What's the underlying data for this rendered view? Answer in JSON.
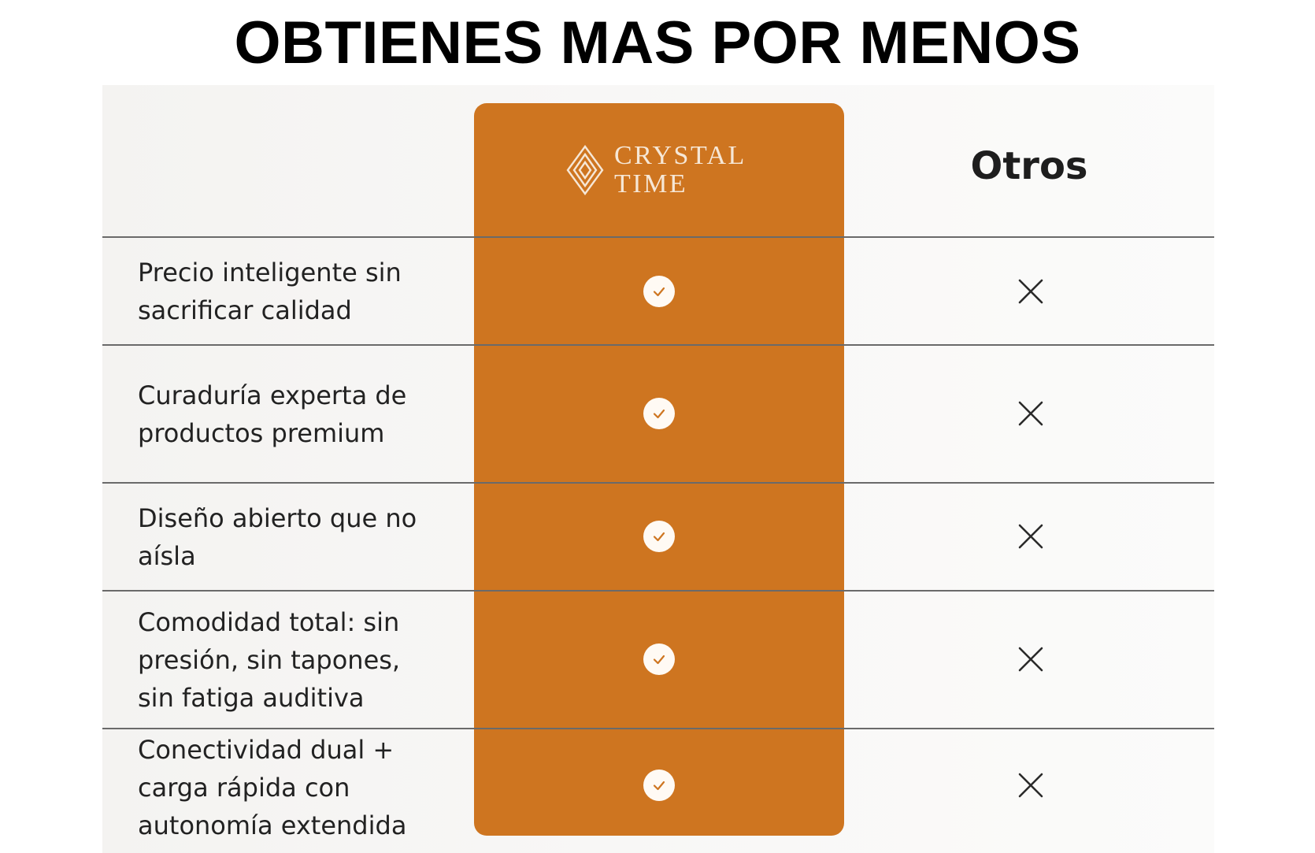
{
  "headline": "OBTIENES MAS POR MENOS",
  "brand": {
    "name_line1": "CRYSTAL",
    "name_line2": "TIME",
    "logo_icon": "diamond-crystal-icon",
    "column_color": "#ce7520"
  },
  "others": {
    "title": "Otros"
  },
  "rows": [
    {
      "feature": [
        "Precio inteligente sin",
        "sacrificar calidad"
      ],
      "brand_value": "check-icon",
      "others_value": "x-icon"
    },
    {
      "feature": [
        "Curaduría experta de",
        "productos premium"
      ],
      "brand_value": "check-icon",
      "others_value": "x-icon"
    },
    {
      "feature": [
        "Diseño abierto que no",
        "aísla"
      ],
      "brand_value": "check-icon",
      "others_value": "x-icon"
    },
    {
      "feature": [
        "Comodidad total: sin",
        "presión, sin tapones,",
        "sin fatiga auditiva"
      ],
      "brand_value": "check-icon",
      "others_value": "x-icon"
    },
    {
      "feature": [
        "Conectividad dual +",
        "carga rápida con",
        "autonomía extendida"
      ],
      "brand_value": "check-icon",
      "others_value": "x-icon"
    }
  ]
}
